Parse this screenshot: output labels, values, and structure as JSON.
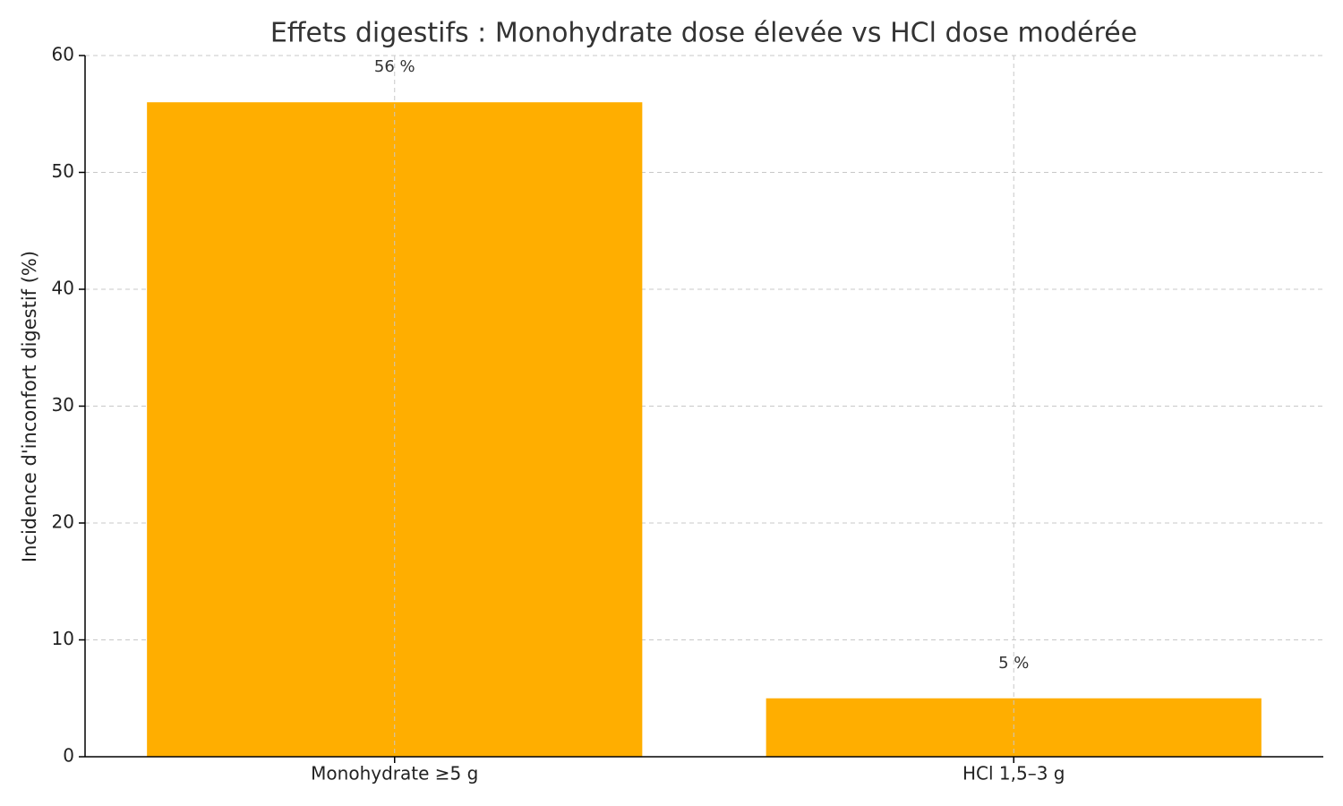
{
  "chart_data": {
    "type": "bar",
    "title": "Effets digestifs : Monohydrate dose élevée vs HCl dose modérée",
    "y_label": "Incidence d'inconfort digestif (%)",
    "categories": [
      "Monohydrate ≥5 g",
      "HCl 1,5–3 g"
    ],
    "values": [
      56,
      5
    ],
    "value_labels": [
      "56 %",
      "5 %"
    ],
    "color": "#ffae00",
    "ylim": [
      0,
      60
    ],
    "yticks": [
      0,
      10,
      20,
      30,
      40,
      50,
      60
    ],
    "grid": true
  }
}
